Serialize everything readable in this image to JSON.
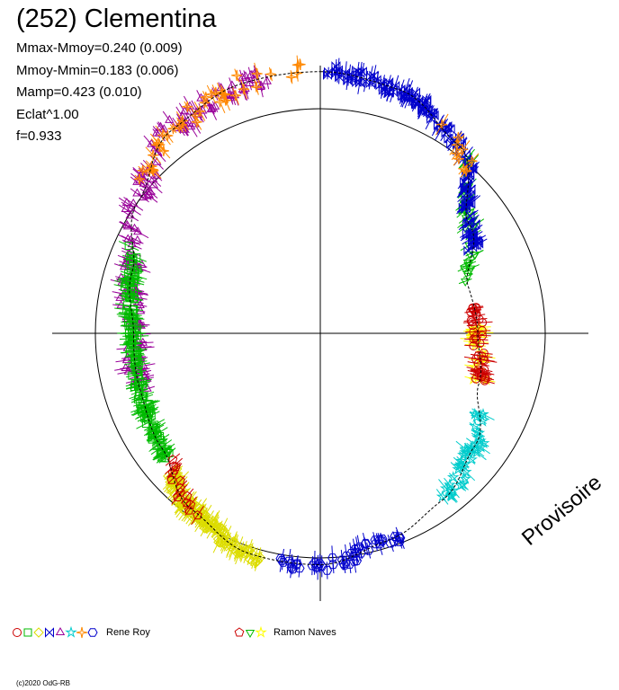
{
  "header": {
    "title": "(252) Clementina",
    "stats": [
      "Mmax-Mmoy=0.240 (0.009)",
      "Mmoy-Mmin=0.183 (0.006)",
      "Mamp=0.423 (0.010)",
      "Eclat^1.00",
      "f=0.933"
    ]
  },
  "watermark": "Provisoire",
  "footer": {
    "credit": "(c)2020 OdG-RB"
  },
  "legend": {
    "groups": [
      {
        "label": "Rene Roy",
        "markers": [
          {
            "shape": "circle",
            "color": "#cc0000"
          },
          {
            "shape": "square",
            "color": "#00bb00"
          },
          {
            "shape": "diamond",
            "color": "#dddd00"
          },
          {
            "shape": "bowtie",
            "color": "#0000cc"
          },
          {
            "shape": "triangle",
            "color": "#990099"
          },
          {
            "shape": "star",
            "color": "#00cccc"
          },
          {
            "shape": "sparkle",
            "color": "#ff8800"
          },
          {
            "shape": "hexagon",
            "color": "#0000cc"
          }
        ]
      },
      {
        "label": "Ramon Naves",
        "markers": [
          {
            "shape": "pentagon",
            "color": "#cc0000"
          },
          {
            "shape": "triangle-down",
            "color": "#00bb00"
          },
          {
            "shape": "star",
            "color": "#ffff00"
          }
        ]
      }
    ]
  },
  "chart_data": {
    "type": "polar-scatter",
    "reference_circle_radius": 1.0,
    "model_curve": [
      {
        "phase": 0.0,
        "r": 1.165
      },
      {
        "phase": 0.05,
        "r": 1.14
      },
      {
        "phase": 0.1,
        "r": 1.04
      },
      {
        "phase": 0.15,
        "r": 0.82
      },
      {
        "phase": 0.2,
        "r": 0.69
      },
      {
        "phase": 0.25,
        "r": 0.7
      },
      {
        "phase": 0.3,
        "r": 0.74
      },
      {
        "phase": 0.35,
        "r": 0.85
      },
      {
        "phase": 0.4,
        "r": 0.92
      },
      {
        "phase": 0.45,
        "r": 0.97
      },
      {
        "phase": 0.5,
        "r": 1.03
      },
      {
        "phase": 0.55,
        "r": 1.03
      },
      {
        "phase": 0.6,
        "r": 0.97
      },
      {
        "phase": 0.65,
        "r": 0.87
      },
      {
        "phase": 0.7,
        "r": 0.84
      },
      {
        "phase": 0.75,
        "r": 0.83
      },
      {
        "phase": 0.8,
        "r": 0.88
      },
      {
        "phase": 0.85,
        "r": 1.0
      },
      {
        "phase": 0.9,
        "r": 1.12
      },
      {
        "phase": 0.95,
        "r": 1.165
      }
    ],
    "sessions": [
      {
        "color": "#990099",
        "shape": "triangle",
        "phase_from": 0.7,
        "phase_to": 0.97,
        "n": 150,
        "scatter": 0.045
      },
      {
        "color": "#00bb00",
        "shape": "square",
        "phase_from": 0.64,
        "phase_to": 0.82,
        "n": 150,
        "scatter": 0.022
      },
      {
        "color": "#00bb00",
        "shape": "triangle-down",
        "phase_from": 0.11,
        "phase_to": 0.2,
        "n": 40,
        "scatter": 0.025
      },
      {
        "color": "#0000cc",
        "shape": "bowtie",
        "phase_from": 0.0,
        "phase_to": 0.17,
        "n": 130,
        "scatter": 0.03
      },
      {
        "color": "#0000cc",
        "shape": "hexagon",
        "phase_from": 0.44,
        "phase_to": 0.53,
        "n": 50,
        "scatter": 0.03
      },
      {
        "color": "#ff8800",
        "shape": "sparkle",
        "phase_from": 0.86,
        "phase_to": 0.99,
        "n": 40,
        "scatter": 0.045
      },
      {
        "color": "#ff8800",
        "shape": "sparkle",
        "phase_from": 0.08,
        "phase_to": 0.12,
        "n": 10,
        "scatter": 0.04
      },
      {
        "color": "#dddd00",
        "shape": "diamond",
        "phase_from": 0.54,
        "phase_to": 0.63,
        "n": 140,
        "scatter": 0.03
      },
      {
        "color": "#ffff00",
        "shape": "star",
        "phase_from": 0.24,
        "phase_to": 0.3,
        "n": 20,
        "scatter": 0.03
      },
      {
        "color": "#cc0000",
        "shape": "circle",
        "phase_from": 0.22,
        "phase_to": 0.3,
        "n": 40,
        "scatter": 0.025
      },
      {
        "color": "#cc0000",
        "shape": "pentagon",
        "phase_from": 0.59,
        "phase_to": 0.64,
        "n": 15,
        "scatter": 0.03
      },
      {
        "color": "#00cccc",
        "shape": "star",
        "phase_from": 0.32,
        "phase_to": 0.4,
        "n": 40,
        "scatter": 0.03
      }
    ]
  }
}
